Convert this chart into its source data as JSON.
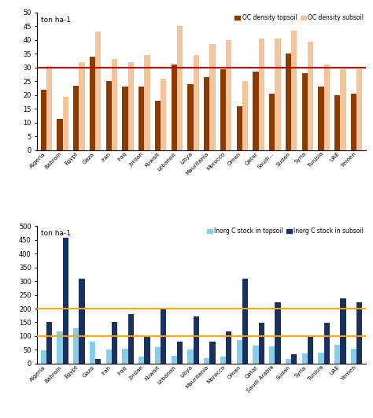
{
  "countries_oc": [
    "Algeria",
    "Bahrain",
    "Egypt",
    "Gaza",
    "Iran",
    "Iraq",
    "Jordan",
    "Kuwait",
    "Lebanon",
    "Libya",
    "Mauritania",
    "Morocco",
    "Oman",
    "Qatar",
    "Saudi...",
    "Sudan",
    "Syria",
    "Tunisia",
    "UAE",
    "Yemen"
  ],
  "oc_topsoil": [
    22,
    11.5,
    23.5,
    34,
    25,
    23,
    23,
    18,
    31,
    24,
    26.5,
    29.5,
    16,
    28.5,
    20.5,
    35,
    28,
    23,
    20,
    20.5
  ],
  "oc_subsoil": [
    30.5,
    19.5,
    32,
    43,
    33,
    32,
    34.5,
    26,
    45,
    34.5,
    38.5,
    40,
    25,
    40.5,
    40.5,
    43.5,
    39.5,
    31,
    29.5,
    29.5
  ],
  "oc_hline": 30,
  "oc_hline_color": "#cc0000",
  "oc_topsoil_color": "#8B3A00",
  "oc_subsoil_color": "#F5C49A",
  "oc_ylabel": "ton ha-1",
  "oc_ylim": [
    0,
    50
  ],
  "oc_yticks": [
    0,
    5,
    10,
    15,
    20,
    25,
    30,
    35,
    40,
    45,
    50
  ],
  "countries_ic": [
    "Algeria",
    "Bahrain",
    "Egypt",
    "Gaza",
    "Iran",
    "Iraq",
    "Jordan",
    "Kuwait",
    "Lebanon",
    "Libya",
    "Mauritania",
    "Morocco",
    "Oman",
    "Qatar",
    "Saudi Arabia",
    "Sudan",
    "Syria",
    "Tunisia",
    "UAE",
    "Yemen"
  ],
  "ic_topsoil": [
    48,
    118,
    128,
    80,
    50,
    55,
    25,
    60,
    28,
    50,
    20,
    25,
    85,
    67,
    63,
    18,
    38,
    40,
    68,
    55
  ],
  "ic_subsoil": [
    150,
    458,
    308,
    18,
    150,
    180,
    97,
    197,
    80,
    170,
    80,
    118,
    308,
    148,
    223,
    35,
    100,
    148,
    238,
    223
  ],
  "ic_hline1": 100,
  "ic_hline2": 200,
  "ic_hline_color": "#FFA500",
  "ic_topsoil_color": "#87CEEB",
  "ic_subsoil_color": "#1a3060",
  "ic_ylabel": "ton ha-1",
  "ic_ylim": [
    0,
    500
  ],
  "ic_yticks": [
    0,
    50,
    100,
    150,
    200,
    250,
    300,
    350,
    400,
    450,
    500
  ]
}
